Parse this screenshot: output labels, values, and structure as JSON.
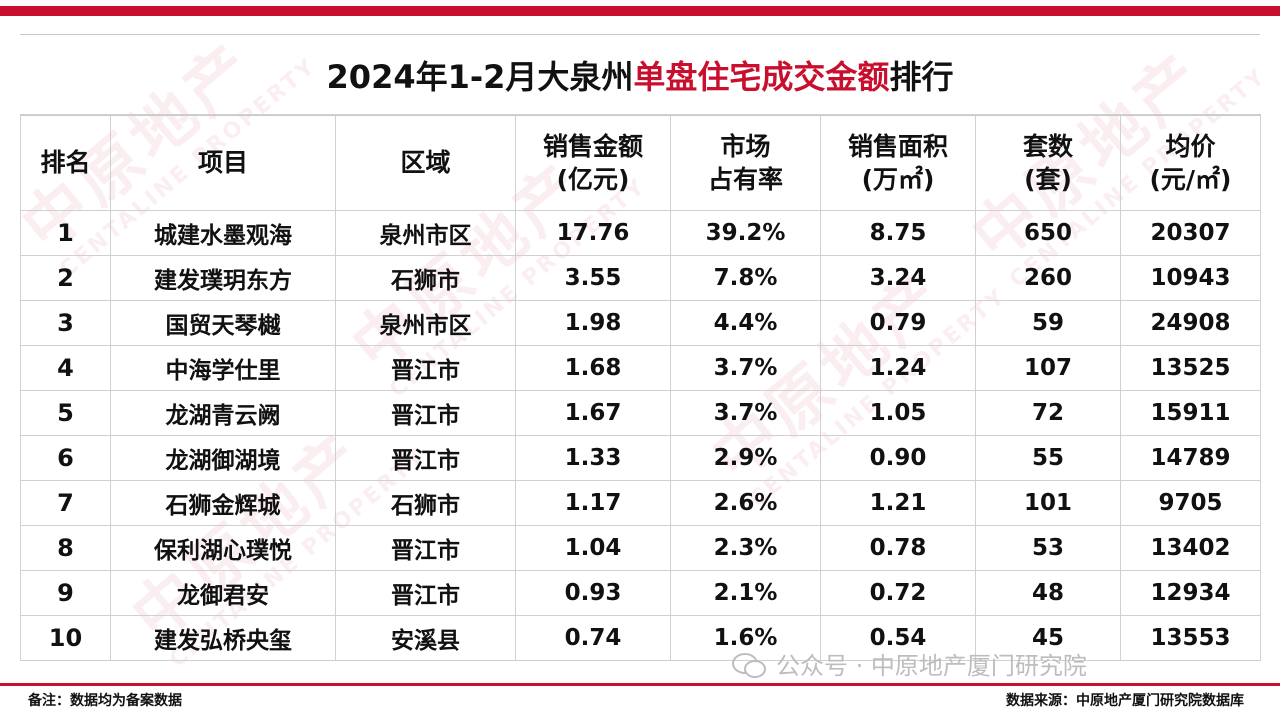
{
  "title": {
    "prefix": "2024年1-2月大泉州",
    "highlight": "单盘住宅成交金额",
    "suffix": "排行"
  },
  "watermark": {
    "cn": "中原地产",
    "en": "CENTALINE PROPERTY"
  },
  "colors": {
    "accent": "#c8102e",
    "grid": "#d0d0d0"
  },
  "table": {
    "headers": [
      {
        "line1": "排名",
        "line2": ""
      },
      {
        "line1": "项目",
        "line2": ""
      },
      {
        "line1": "区域",
        "line2": ""
      },
      {
        "line1": "销售金额",
        "line2": "(亿元)"
      },
      {
        "line1": "市场",
        "line2": "占有率"
      },
      {
        "line1": "销售面积",
        "line2": "(万㎡)"
      },
      {
        "line1": "套数",
        "line2": "(套)"
      },
      {
        "line1": "均价",
        "line2": "(元/㎡)"
      }
    ],
    "rows": [
      [
        "1",
        "城建水墨观海",
        "泉州市区",
        "17.76",
        "39.2%",
        "8.75",
        "650",
        "20307"
      ],
      [
        "2",
        "建发璞玥东方",
        "石狮市",
        "3.55",
        "7.8%",
        "3.24",
        "260",
        "10943"
      ],
      [
        "3",
        "国贸天琴樾",
        "泉州市区",
        "1.98",
        "4.4%",
        "0.79",
        "59",
        "24908"
      ],
      [
        "4",
        "中海学仕里",
        "晋江市",
        "1.68",
        "3.7%",
        "1.24",
        "107",
        "13525"
      ],
      [
        "5",
        "龙湖青云阙",
        "晋江市",
        "1.67",
        "3.7%",
        "1.05",
        "72",
        "15911"
      ],
      [
        "6",
        "龙湖御湖境",
        "晋江市",
        "1.33",
        "2.9%",
        "0.90",
        "55",
        "14789"
      ],
      [
        "7",
        "石狮金辉城",
        "石狮市",
        "1.17",
        "2.6%",
        "1.21",
        "101",
        "9705"
      ],
      [
        "8",
        "保利湖心璞悦",
        "晋江市",
        "1.04",
        "2.3%",
        "0.78",
        "53",
        "13402"
      ],
      [
        "9",
        "龙御君安",
        "晋江市",
        "0.93",
        "2.1%",
        "0.72",
        "48",
        "12934"
      ],
      [
        "10",
        "建发弘桥央玺",
        "安溪县",
        "0.74",
        "1.6%",
        "0.54",
        "45",
        "13553"
      ]
    ]
  },
  "wechat_watermark": "公众号 · 中原地产厦门研究院",
  "footer": {
    "note": "备注：数据均为备案数据",
    "source": "数据来源：中原地产厦门研究院数据库"
  }
}
